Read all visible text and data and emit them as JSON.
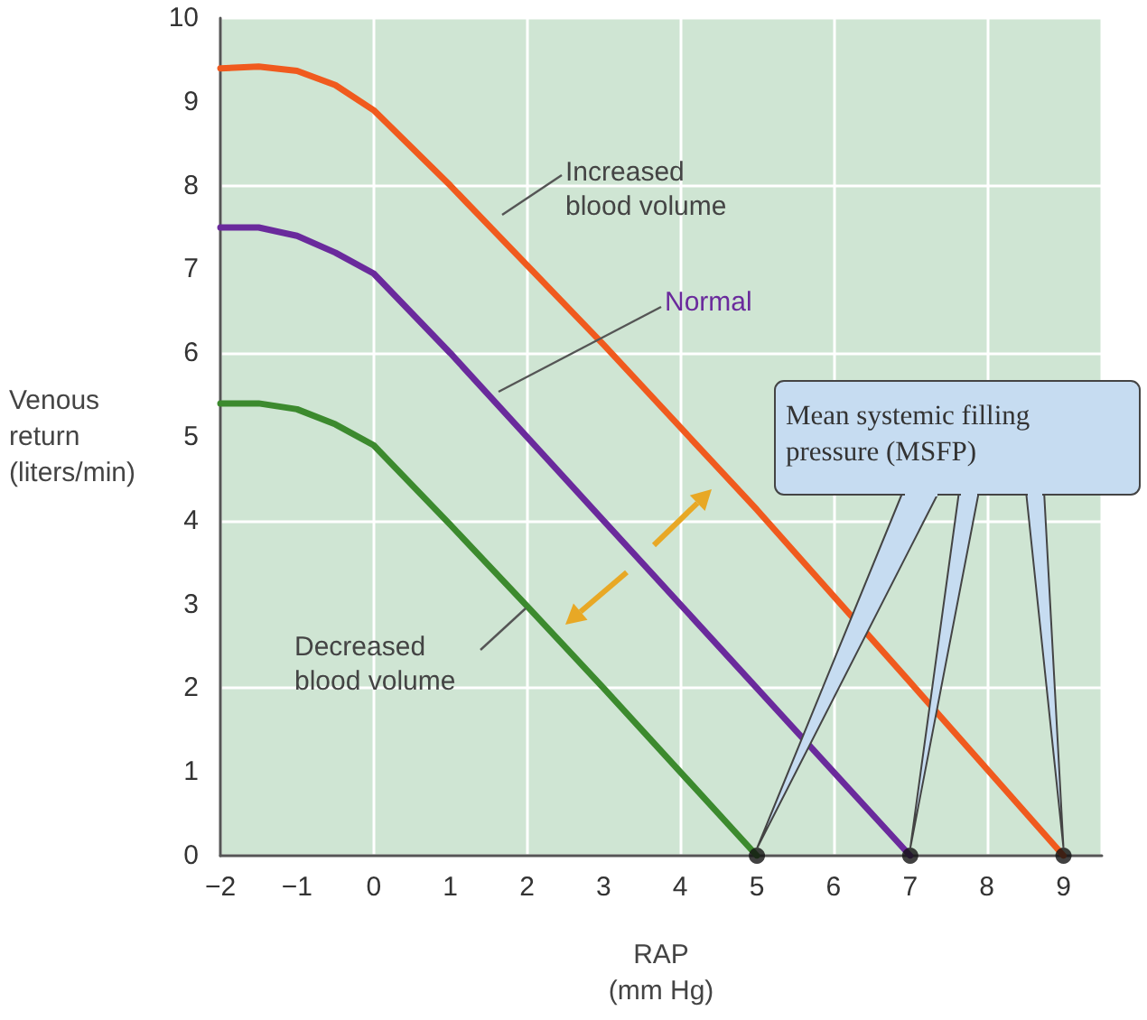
{
  "chart_data": {
    "type": "line",
    "xlabel": "RAP\n(mm Hg)",
    "ylabel": "Venous\nreturn\n(liters/min)",
    "xlim": [
      -2,
      9.5
    ],
    "xticks": [
      -2,
      -1,
      0,
      1,
      2,
      3,
      4,
      5,
      6,
      7,
      8,
      9
    ],
    "ylim": [
      0,
      10
    ],
    "yticks": [
      0,
      1,
      2,
      3,
      4,
      5,
      6,
      7,
      8,
      9,
      10
    ],
    "grid": true,
    "legend": false,
    "marker": "none",
    "line_style": "solid",
    "annotations": [
      "Mean systemic filling pressure (MSFP)"
    ],
    "series": [
      {
        "name": "Increased blood volume",
        "color": "#f05a1e",
        "x": [
          -2,
          -1.5,
          -1,
          -0.5,
          0,
          1,
          3,
          5,
          7,
          9
        ],
        "values": [
          9.4,
          9.42,
          9.37,
          9.2,
          8.9,
          8.0,
          6.1,
          4.13,
          2.07,
          0
        ]
      },
      {
        "name": "Normal",
        "color": "#6a2a9c",
        "x": [
          -2,
          -1.5,
          -1,
          -0.5,
          0,
          1,
          3,
          5,
          7
        ],
        "values": [
          7.5,
          7.5,
          7.4,
          7.2,
          6.95,
          6.0,
          4.0,
          2.0,
          0
        ]
      },
      {
        "name": "Decreased blood volume",
        "color": "#3c8a2e",
        "x": [
          -2,
          -1.5,
          -1,
          -0.5,
          0,
          1,
          2,
          3,
          5
        ],
        "values": [
          5.4,
          5.4,
          5.33,
          5.15,
          4.9,
          3.95,
          2.98,
          2.0,
          0
        ]
      },
      {
        "type": "scatter",
        "marker": "circle",
        "color": "#111111",
        "x": [
          5,
          7,
          9
        ],
        "values": [
          0,
          0,
          0
        ]
      }
    ]
  }
}
